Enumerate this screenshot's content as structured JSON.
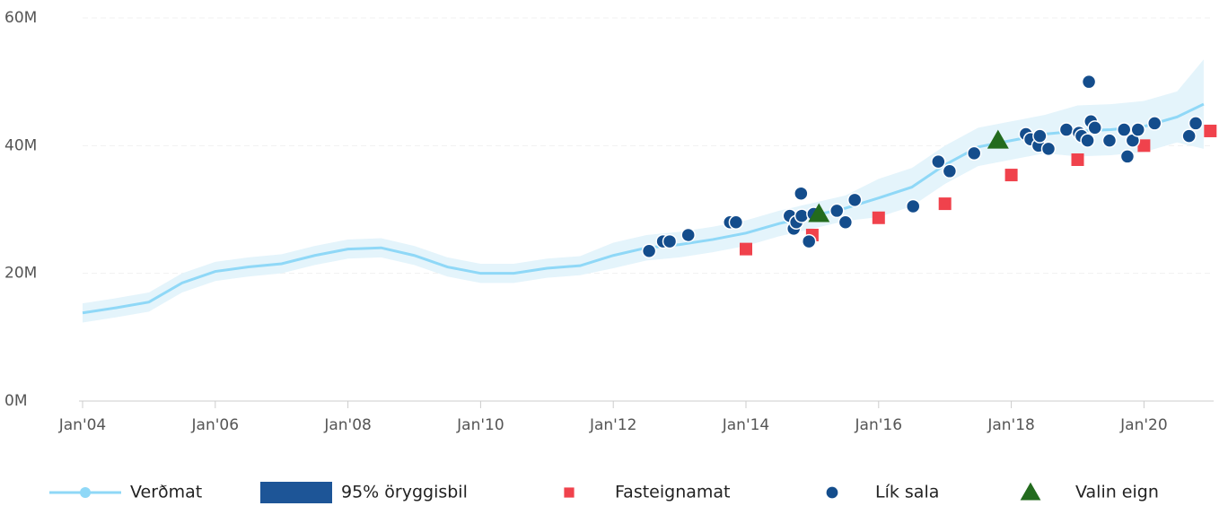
{
  "chart_data": {
    "type": "line",
    "xlim": [
      2004,
      2021.05
    ],
    "xticks": [
      {
        "value": 2004,
        "label": "Jan'04"
      },
      {
        "value": 2006,
        "label": "Jan'06"
      },
      {
        "value": 2008,
        "label": "Jan'08"
      },
      {
        "value": 2010,
        "label": "Jan'10"
      },
      {
        "value": 2012,
        "label": "Jan'12"
      },
      {
        "value": 2014,
        "label": "Jan'14"
      },
      {
        "value": 2016,
        "label": "Jan'16"
      },
      {
        "value": 2018,
        "label": "Jan'18"
      },
      {
        "value": 2020,
        "label": "Jan'20"
      }
    ],
    "ylim": [
      0,
      60
    ],
    "yticks": [
      {
        "value": 0,
        "label": "0M"
      },
      {
        "value": 20,
        "label": "20M"
      },
      {
        "value": 40,
        "label": "40M"
      },
      {
        "value": 60,
        "label": "60M"
      }
    ],
    "grid": true,
    "legend": "bottom",
    "series": [
      {
        "name": "Verðmat",
        "type": "line",
        "color": "#8fd8f7",
        "x": [
          2004.0,
          2004.5,
          2005.0,
          2005.5,
          2006.0,
          2006.5,
          2007.0,
          2007.5,
          2008.0,
          2008.5,
          2009.0,
          2009.5,
          2010.0,
          2010.5,
          2011.0,
          2011.5,
          2012.0,
          2012.5,
          2013.0,
          2013.5,
          2014.0,
          2014.5,
          2015.0,
          2015.5,
          2016.0,
          2016.5,
          2017.0,
          2017.5,
          2018.0,
          2018.5,
          2019.0,
          2019.5,
          2020.0,
          2020.5,
          2020.9
        ],
        "values": [
          13.8,
          14.6,
          15.5,
          18.5,
          20.3,
          21.0,
          21.5,
          22.8,
          23.8,
          24.0,
          22.8,
          21.0,
          20.0,
          20.0,
          20.8,
          21.2,
          22.8,
          24.0,
          24.5,
          25.3,
          26.3,
          27.8,
          29.0,
          30.2,
          31.8,
          33.5,
          37.0,
          39.8,
          40.8,
          41.8,
          42.3,
          42.5,
          43.0,
          44.5,
          46.5
        ],
        "band": {
          "name": "95% öryggisbil",
          "color": "#e4f4fb",
          "legend_color": "#1d5597",
          "lower": [
            12.3,
            13.1,
            14.0,
            17.0,
            18.8,
            19.5,
            20.0,
            21.3,
            22.3,
            22.5,
            21.3,
            19.5,
            18.5,
            18.5,
            19.3,
            19.7,
            20.8,
            22.0,
            22.5,
            23.3,
            24.3,
            25.8,
            27.0,
            28.2,
            28.8,
            30.5,
            34.0,
            36.8,
            37.8,
            38.8,
            38.3,
            38.5,
            39.0,
            40.5,
            39.5
          ],
          "upper": [
            15.3,
            16.1,
            17.0,
            20.0,
            21.8,
            22.5,
            23.0,
            24.3,
            25.3,
            25.5,
            24.3,
            22.5,
            21.5,
            21.5,
            22.3,
            22.7,
            24.8,
            26.0,
            26.5,
            27.3,
            28.3,
            29.8,
            31.0,
            32.2,
            34.8,
            36.5,
            40.0,
            42.8,
            43.8,
            44.8,
            46.3,
            46.5,
            47.0,
            48.5,
            53.5
          ]
        }
      },
      {
        "name": "Fasteignamat",
        "type": "scatter",
        "marker": "square",
        "color": "#f0424c",
        "x": [
          2014.0,
          2015.0,
          2016.0,
          2017.0,
          2018.0,
          2019.0,
          2020.0,
          2021.0
        ],
        "values": [
          23.8,
          26.0,
          28.7,
          30.9,
          35.4,
          37.8,
          40.0,
          42.3
        ]
      },
      {
        "name": "Lík sala",
        "type": "scatter",
        "marker": "circle",
        "color": "#144d8c",
        "x": [
          2012.54,
          2012.75,
          2012.85,
          2013.13,
          2013.76,
          2013.85,
          2014.66,
          2014.72,
          2014.76,
          2014.83,
          2014.84,
          2014.95,
          2015.02,
          2015.37,
          2015.5,
          2015.64,
          2016.52,
          2016.9,
          2017.07,
          2017.44,
          2018.22,
          2018.29,
          2018.41,
          2018.43,
          2018.56,
          2018.83,
          2019.02,
          2019.06,
          2019.15,
          2019.17,
          2019.2,
          2019.26,
          2019.48,
          2019.7,
          2019.75,
          2019.83,
          2019.91,
          2020.16,
          2020.68,
          2020.78
        ],
        "values": [
          23.5,
          25.0,
          25.0,
          26.0,
          28.0,
          28.0,
          29.0,
          27.0,
          28.0,
          32.5,
          29.0,
          25.0,
          29.3,
          29.8,
          28.0,
          31.5,
          30.5,
          37.5,
          36.0,
          38.8,
          41.8,
          41.0,
          40.0,
          41.5,
          39.5,
          42.5,
          42.0,
          41.5,
          40.8,
          50.0,
          43.8,
          42.8,
          40.8,
          42.5,
          38.3,
          40.8,
          42.5,
          43.5,
          41.5,
          43.5
        ]
      },
      {
        "name": "Valin eign",
        "type": "scatter",
        "marker": "triangle",
        "color": "#236b1e",
        "x": [
          2015.1,
          2017.8
        ],
        "values": [
          29.3,
          40.8
        ]
      }
    ]
  }
}
